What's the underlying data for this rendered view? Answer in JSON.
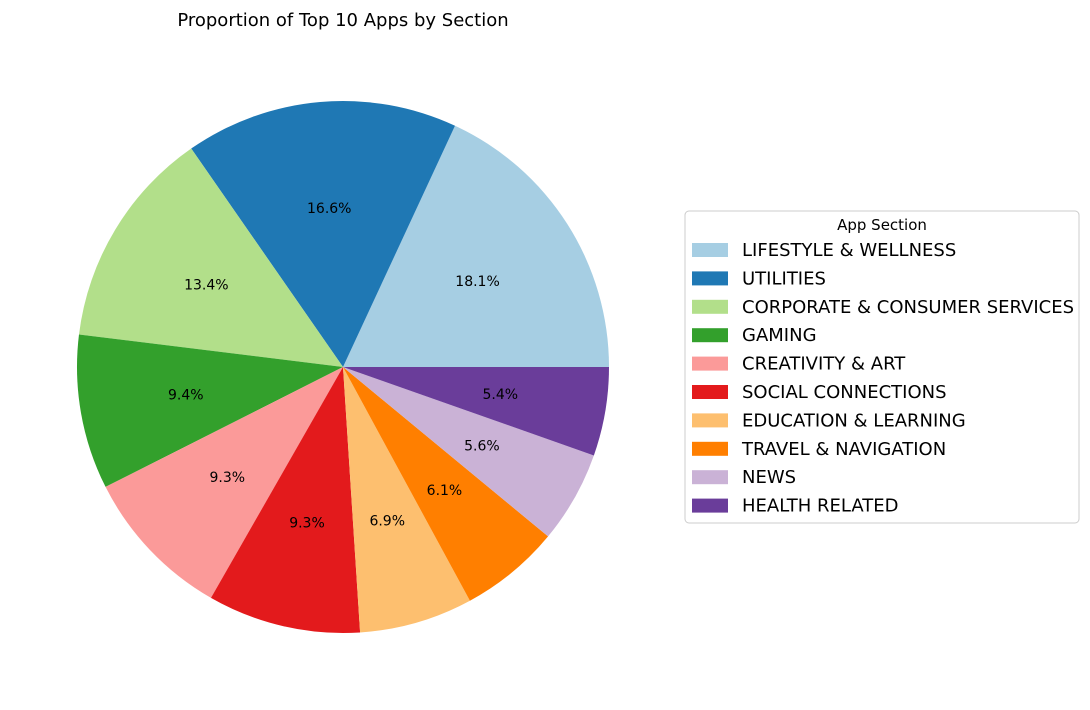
{
  "chart_data": {
    "type": "pie",
    "title": "Proportion of Top 10 Apps by Section",
    "legend_title": "App Section",
    "legend_position": "center-right",
    "start_angle_deg": 0,
    "direction": "counterclockwise",
    "slices": [
      {
        "label": "LIFESTYLE & WELLNESS",
        "value": 18.1,
        "pct_label": "18.1%",
        "color": "#a6cee3"
      },
      {
        "label": "UTILITIES",
        "value": 16.6,
        "pct_label": "16.6%",
        "color": "#1f78b4"
      },
      {
        "label": "CORPORATE & CONSUMER SERVICES",
        "value": 13.4,
        "pct_label": "13.4%",
        "color": "#b2df8a"
      },
      {
        "label": "GAMING",
        "value": 9.4,
        "pct_label": "9.4%",
        "color": "#33a02c"
      },
      {
        "label": "CREATIVITY & ART",
        "value": 9.3,
        "pct_label": "9.3%",
        "color": "#fb9a99"
      },
      {
        "label": "SOCIAL CONNECTIONS",
        "value": 9.3,
        "pct_label": "9.3%",
        "color": "#e31a1c"
      },
      {
        "label": "EDUCATION & LEARNING",
        "value": 6.9,
        "pct_label": "6.9%",
        "color": "#fdbf6f"
      },
      {
        "label": "TRAVEL & NAVIGATION",
        "value": 6.1,
        "pct_label": "6.1%",
        "color": "#ff7f00"
      },
      {
        "label": "NEWS",
        "value": 5.6,
        "pct_label": "5.6%",
        "color": "#cab2d6"
      },
      {
        "label": "HEALTH RELATED",
        "value": 5.4,
        "pct_label": "5.4%",
        "color": "#6a3d9a"
      }
    ]
  }
}
